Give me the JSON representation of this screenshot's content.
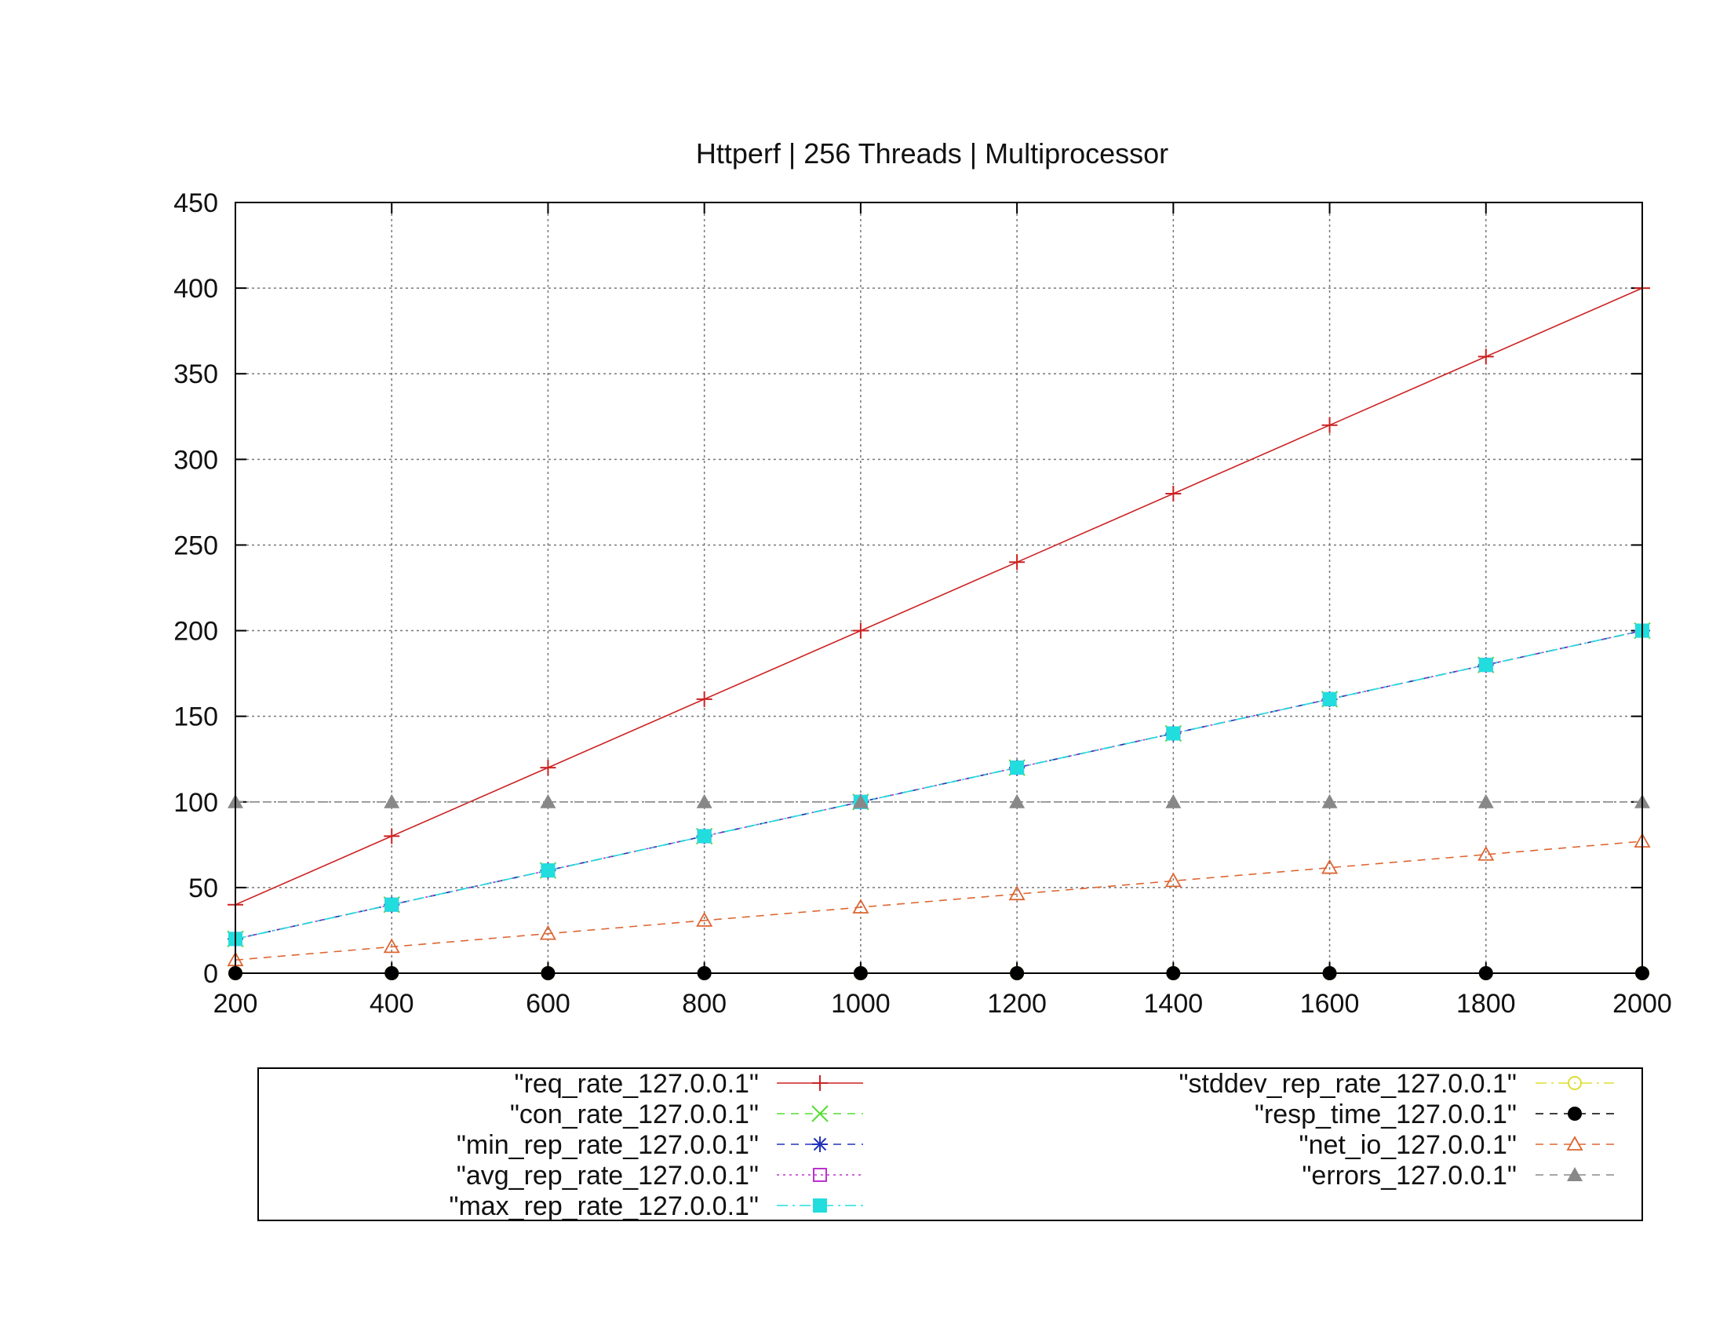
{
  "chart_data": {
    "type": "line",
    "title": "Httperf | 256 Threads | Multiprocessor",
    "xlabel": "",
    "ylabel": "",
    "xlim": [
      200,
      2000
    ],
    "ylim": [
      0,
      450
    ],
    "x_ticks": [
      200,
      400,
      600,
      800,
      1000,
      1200,
      1400,
      1600,
      1800,
      2000
    ],
    "y_ticks": [
      0,
      50,
      100,
      150,
      200,
      250,
      300,
      350,
      400,
      450
    ],
    "grid": true,
    "legend_position": "bottom",
    "x": [
      200,
      400,
      600,
      800,
      1000,
      1200,
      1400,
      1600,
      1800,
      2000
    ],
    "series": [
      {
        "name": "\"req_rate_127.0.0.1\"",
        "color": "#cc2222",
        "marker": "plus",
        "dash": "solid",
        "values": [
          40,
          80,
          120,
          160,
          200,
          240,
          280,
          320,
          360,
          400
        ]
      },
      {
        "name": "\"con_rate_127.0.0.1\"",
        "color": "#55dd33",
        "marker": "cross",
        "dash": "dashed",
        "values": [
          20,
          40,
          60,
          80,
          100,
          120,
          140,
          160,
          180,
          200
        ]
      },
      {
        "name": "\"min_rep_rate_127.0.0.1\"",
        "color": "#2233bb",
        "marker": "star",
        "dash": "dashed",
        "values": [
          20,
          40,
          60,
          80,
          100,
          120,
          140,
          160,
          180,
          200
        ]
      },
      {
        "name": "\"avg_rep_rate_127.0.0.1\"",
        "color": "#bb33cc",
        "marker": "square-open",
        "dash": "dotted",
        "values": [
          20,
          40,
          60,
          80,
          100,
          120,
          140,
          160,
          180,
          200
        ]
      },
      {
        "name": "\"max_rep_rate_127.0.0.1\"",
        "color": "#22dddd",
        "marker": "square-filled",
        "dash": "dashdot",
        "values": [
          20,
          40,
          60,
          80,
          100,
          120,
          140,
          160,
          180,
          200
        ]
      },
      {
        "name": "\"stddev_rep_rate_127.0.0.1\"",
        "color": "#dddd33",
        "marker": "circle-open",
        "dash": "dashdot",
        "values": [
          0,
          0,
          0,
          0,
          0,
          0,
          0,
          0,
          0,
          0
        ]
      },
      {
        "name": "\"resp_time_127.0.0.1\"",
        "color": "#000000",
        "marker": "circle-filled",
        "dash": "dashed",
        "values": [
          0,
          0,
          0,
          0,
          0,
          0,
          0,
          0,
          0,
          0
        ]
      },
      {
        "name": "\"net_io_127.0.0.1\"",
        "color": "#dd6633",
        "marker": "triangle-open",
        "dash": "dashed",
        "values": [
          7.7,
          15.4,
          23.1,
          30.8,
          38.5,
          46.2,
          53.9,
          61.6,
          69.3,
          77
        ]
      },
      {
        "name": "\"errors_127.0.0.1\"",
        "color": "#888888",
        "marker": "triangle-filled",
        "dash": "dashed",
        "values": [
          100,
          100,
          100,
          100,
          100,
          100,
          100,
          100,
          100,
          100
        ]
      }
    ]
  }
}
